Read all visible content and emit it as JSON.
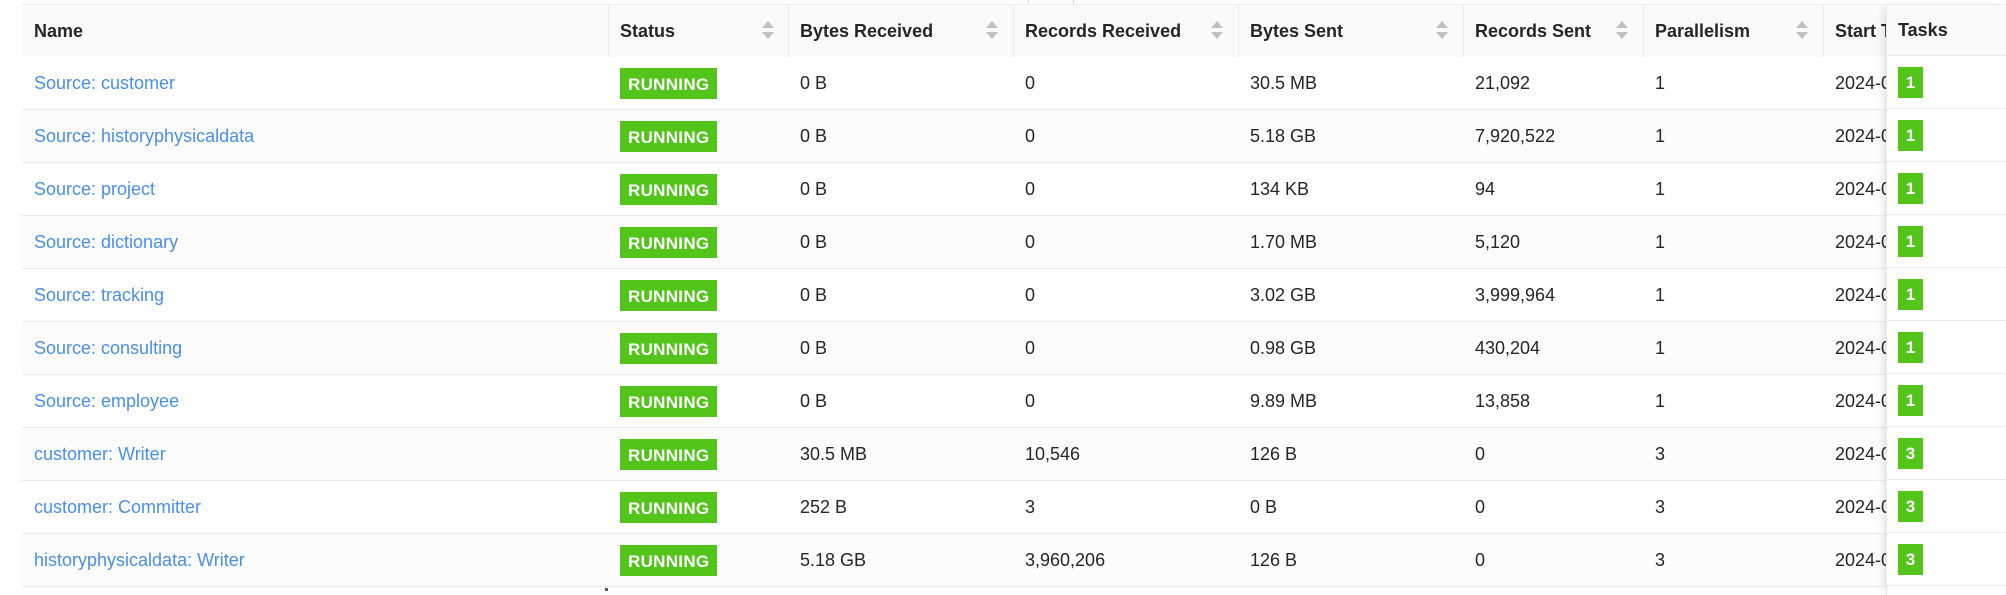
{
  "handle_label": "...",
  "columns": {
    "name": "Name",
    "status": "Status",
    "bytes_received": "Bytes Received",
    "records_received": "Records Received",
    "bytes_sent": "Bytes Sent",
    "records_sent": "Records Sent",
    "parallelism": "Parallelism",
    "start_time": "Start T",
    "tasks": "Tasks"
  },
  "status_color": "#52c41a",
  "link_color": "#4a8fe7",
  "rows": [
    {
      "name": "Source: customer",
      "status": "RUNNING",
      "bytes_received": "0 B",
      "records_received": "0",
      "bytes_sent": "30.5 MB",
      "records_sent": "21,092",
      "parallelism": "1",
      "start_time": "2024-0",
      "tasks": "1"
    },
    {
      "name": "Source: historyphysicaldata",
      "status": "RUNNING",
      "bytes_received": "0 B",
      "records_received": "0",
      "bytes_sent": "5.18 GB",
      "records_sent": "7,920,522",
      "parallelism": "1",
      "start_time": "2024-0",
      "tasks": "1"
    },
    {
      "name": "Source: project",
      "status": "RUNNING",
      "bytes_received": "0 B",
      "records_received": "0",
      "bytes_sent": "134 KB",
      "records_sent": "94",
      "parallelism": "1",
      "start_time": "2024-0",
      "tasks": "1"
    },
    {
      "name": "Source: dictionary",
      "status": "RUNNING",
      "bytes_received": "0 B",
      "records_received": "0",
      "bytes_sent": "1.70 MB",
      "records_sent": "5,120",
      "parallelism": "1",
      "start_time": "2024-0",
      "tasks": "1"
    },
    {
      "name": "Source: tracking",
      "status": "RUNNING",
      "bytes_received": "0 B",
      "records_received": "0",
      "bytes_sent": "3.02 GB",
      "records_sent": "3,999,964",
      "parallelism": "1",
      "start_time": "2024-0",
      "tasks": "1"
    },
    {
      "name": "Source: consulting",
      "status": "RUNNING",
      "bytes_received": "0 B",
      "records_received": "0",
      "bytes_sent": "0.98 GB",
      "records_sent": "430,204",
      "parallelism": "1",
      "start_time": "2024-0",
      "tasks": "1"
    },
    {
      "name": "Source: employee",
      "status": "RUNNING",
      "bytes_received": "0 B",
      "records_received": "0",
      "bytes_sent": "9.89 MB",
      "records_sent": "13,858",
      "parallelism": "1",
      "start_time": "2024-0",
      "tasks": "1"
    },
    {
      "name": "customer: Writer",
      "status": "RUNNING",
      "bytes_received": "30.5 MB",
      "records_received": "10,546",
      "bytes_sent": "126 B",
      "records_sent": "0",
      "parallelism": "3",
      "start_time": "2024-0",
      "tasks": "3"
    },
    {
      "name": "customer: Committer",
      "status": "RUNNING",
      "bytes_received": "252 B",
      "records_received": "3",
      "bytes_sent": "0 B",
      "records_sent": "0",
      "parallelism": "3",
      "start_time": "2024-0",
      "tasks": "3"
    },
    {
      "name": "historyphysicaldata: Writer",
      "status": "RUNNING",
      "bytes_received": "5.18 GB",
      "records_received": "3,960,206",
      "bytes_sent": "126 B",
      "records_sent": "0",
      "parallelism": "3",
      "start_time": "2024-0",
      "tasks": "3"
    }
  ]
}
